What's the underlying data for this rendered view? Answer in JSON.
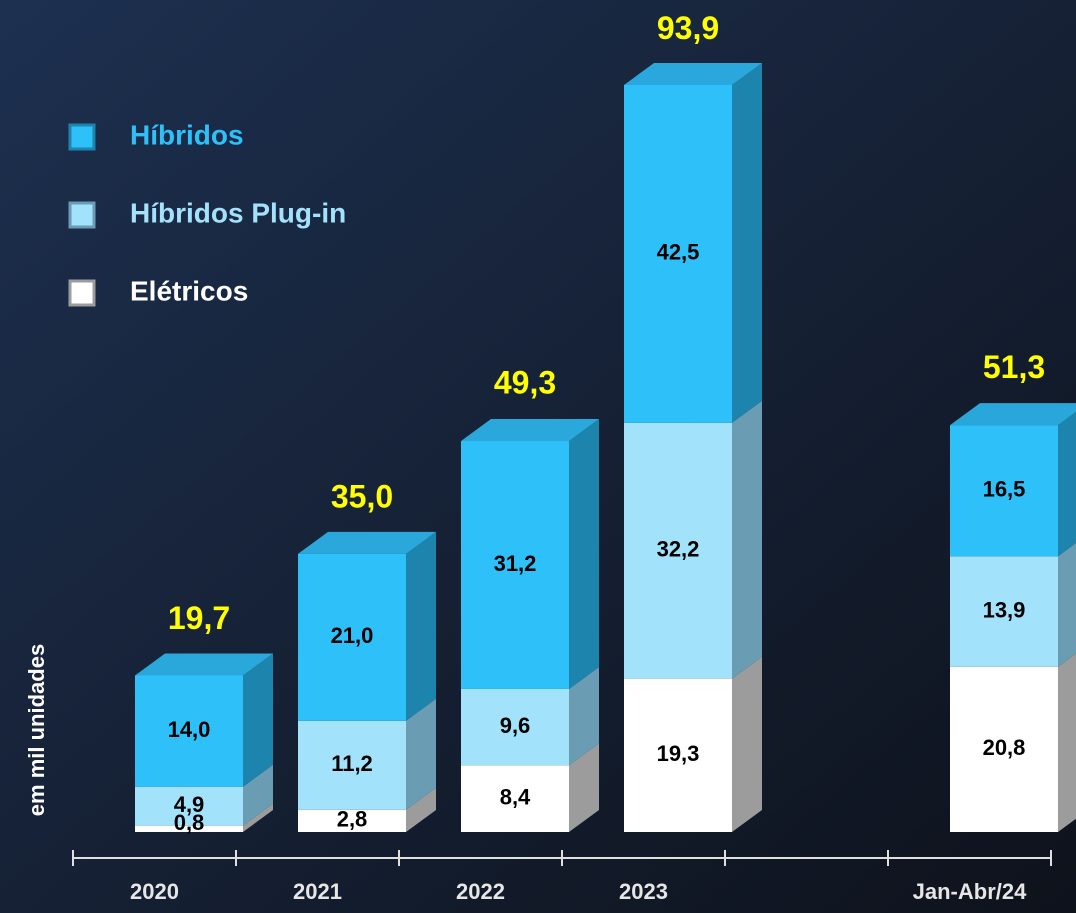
{
  "chart_data": {
    "type": "stacked_bar",
    "y_label": "em  mil unidades",
    "categories": [
      "2020",
      "2021",
      "2022",
      "2023",
      null,
      "Jan-Abr/24"
    ],
    "series": [
      {
        "name": "Elétricos",
        "color": "#ffffff",
        "side_color": "#9c9c9c",
        "values": [
          0.8,
          2.8,
          8.4,
          19.3,
          null,
          20.8
        ],
        "value_labels": [
          "0,8",
          "2,8",
          "8,4",
          "19,3",
          null,
          "20,8"
        ]
      },
      {
        "name": "Híbridos Plug-in",
        "color": "#a3e2fb",
        "side_color": "#6a9db3",
        "values": [
          4.9,
          11.2,
          9.6,
          32.2,
          null,
          13.9
        ],
        "value_labels": [
          "4,9",
          "11,2",
          "9,6",
          "32,2",
          null,
          "13,9"
        ]
      },
      {
        "name": "Híbridos",
        "color": "#2ec0f9",
        "side_color": "#1d84ad",
        "values": [
          14.0,
          21.0,
          31.2,
          42.5,
          null,
          16.5
        ],
        "value_labels": [
          "14,0",
          "21,0",
          "31,2",
          "42,5",
          null,
          "16,5"
        ]
      }
    ],
    "totals": [
      19.7,
      35.0,
      49.3,
      93.9,
      null,
      51.3
    ],
    "total_labels": [
      "19,7",
      "35,0",
      "49,3",
      "93,9",
      null,
      "51,3"
    ],
    "total_color": "#ffff00"
  }
}
